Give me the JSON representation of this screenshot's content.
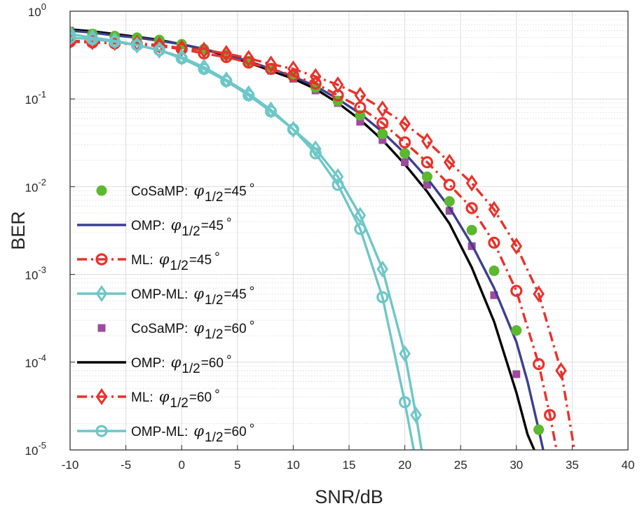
{
  "chart_data": {
    "type": "line",
    "title": "",
    "xlabel": "SNR/dB",
    "ylabel": "BER",
    "xlim": [
      -10,
      40
    ],
    "ylim": [
      1e-05,
      1
    ],
    "yscale": "log",
    "grid": true,
    "minor_grid": true,
    "legend_placement": "left",
    "x_ticks": [
      "-10",
      "-5",
      "0",
      "5",
      "10",
      "15",
      "20",
      "25",
      "30",
      "35",
      "40"
    ],
    "y_ticks": [
      {
        "base": "10",
        "exp": "0"
      },
      {
        "base": "10",
        "exp": "-1"
      },
      {
        "base": "10",
        "exp": "-2"
      },
      {
        "base": "10",
        "exp": "-3"
      },
      {
        "base": "10",
        "exp": "-4"
      },
      {
        "base": "10",
        "exp": "-5"
      }
    ],
    "series": [
      {
        "legend": {
          "prefix": "CoSaMP:",
          "sub": "1/2",
          "suffix": "=45",
          "deg": "°"
        },
        "color": "#5cb82e",
        "line": "none",
        "marker": "circle-filled",
        "x": [
          -10,
          -8,
          -6,
          -4,
          -2,
          0,
          2,
          4,
          6,
          8,
          10,
          12,
          14,
          16,
          18,
          20,
          22,
          24,
          26,
          28,
          30,
          32
        ],
        "y": [
          0.57,
          0.55,
          0.52,
          0.5,
          0.47,
          0.42,
          0.37,
          0.32,
          0.27,
          0.22,
          0.18,
          0.135,
          0.095,
          0.065,
          0.04,
          0.024,
          0.013,
          0.0068,
          0.0032,
          0.0011,
          0.00023,
          1.7e-05
        ]
      },
      {
        "legend": {
          "prefix": "OMP:",
          "sub": "1/2",
          "suffix": "=45",
          "deg": "°"
        },
        "color": "#3c3f90",
        "line": "solid",
        "marker": "none",
        "x": [
          -10,
          -8,
          -6,
          -4,
          -2,
          0,
          2,
          4,
          6,
          8,
          10,
          12,
          14,
          16,
          18,
          20,
          22,
          24,
          26,
          28,
          30,
          31,
          32,
          32.4
        ],
        "y": [
          0.6,
          0.57,
          0.53,
          0.5,
          0.46,
          0.42,
          0.37,
          0.32,
          0.27,
          0.22,
          0.18,
          0.14,
          0.1,
          0.068,
          0.042,
          0.024,
          0.0125,
          0.0058,
          0.0022,
          0.0007,
          0.00017,
          6e-05,
          1.7e-05,
          1e-05
        ]
      },
      {
        "legend": {
          "prefix": "ML:",
          "sub": "1/2",
          "suffix": "=45",
          "deg": "°"
        },
        "color": "#e8322b",
        "line": "dashdot",
        "marker": "circle-open",
        "x": [
          -10,
          -8,
          -6,
          -4,
          -2,
          0,
          2,
          4,
          6,
          8,
          10,
          12,
          14,
          16,
          18,
          20,
          22,
          24,
          26,
          28,
          30,
          32,
          33,
          33.6
        ],
        "y": [
          0.45,
          0.44,
          0.43,
          0.42,
          0.4,
          0.37,
          0.33,
          0.3,
          0.26,
          0.22,
          0.185,
          0.15,
          0.11,
          0.08,
          0.053,
          0.032,
          0.019,
          0.0105,
          0.0057,
          0.0023,
          0.00065,
          9.5e-05,
          2.5e-05,
          1e-05
        ]
      },
      {
        "legend": {
          "prefix": "OMP-ML:",
          "sub": "1/2",
          "suffix": "=45",
          "deg": "°"
        },
        "color": "#6ec6c7",
        "line": "solid",
        "marker": "diamond-open",
        "x": [
          -10,
          -8,
          -6,
          -4,
          -2,
          0,
          2,
          4,
          6,
          8,
          10,
          12,
          14,
          16,
          18,
          20,
          21,
          21.5
        ],
        "y": [
          0.55,
          0.5,
          0.46,
          0.41,
          0.36,
          0.3,
          0.23,
          0.165,
          0.115,
          0.075,
          0.045,
          0.027,
          0.013,
          0.0047,
          0.00115,
          0.000125,
          2.5e-05,
          1e-05
        ]
      },
      {
        "legend": {
          "prefix": "CoSaMP:",
          "sub": "1/2",
          "suffix": "=60",
          "deg": "°"
        },
        "color": "#9e4a9e",
        "line": "none",
        "marker": "square-filled",
        "x": [
          -10,
          -8,
          -6,
          -4,
          -2,
          0,
          2,
          4,
          6,
          8,
          10,
          12,
          14,
          16,
          18,
          20,
          22,
          24,
          26,
          28,
          30
        ],
        "y": [
          0.6,
          0.56,
          0.52,
          0.49,
          0.45,
          0.41,
          0.36,
          0.31,
          0.26,
          0.21,
          0.17,
          0.125,
          0.09,
          0.055,
          0.034,
          0.019,
          0.0105,
          0.0053,
          0.0021,
          0.00058,
          7.3e-05
        ]
      },
      {
        "legend": {
          "prefix": "OMP:",
          "sub": "1/2",
          "suffix": "=60",
          "deg": "°"
        },
        "color": "#000000",
        "line": "solid",
        "marker": "none",
        "x": [
          -10,
          -8,
          -6,
          -4,
          -2,
          0,
          2,
          4,
          6,
          8,
          10,
          12,
          14,
          16,
          18,
          20,
          22,
          24,
          26,
          28,
          30,
          31,
          31.6
        ],
        "y": [
          0.62,
          0.59,
          0.55,
          0.51,
          0.47,
          0.42,
          0.37,
          0.31,
          0.26,
          0.21,
          0.17,
          0.13,
          0.09,
          0.058,
          0.034,
          0.018,
          0.0088,
          0.0038,
          0.0012,
          0.00029,
          4.5e-05,
          1.5e-05,
          1e-05
        ]
      },
      {
        "legend": {
          "prefix": "ML:",
          "sub": "1/2",
          "suffix": "=60",
          "deg": "°"
        },
        "color": "#e8322b",
        "line": "dashdot",
        "marker": "diamond-open",
        "x": [
          -10,
          -8,
          -6,
          -4,
          -2,
          0,
          2,
          4,
          6,
          8,
          10,
          12,
          14,
          16,
          18,
          20,
          22,
          24,
          26,
          28,
          30,
          32,
          34,
          35.2
        ],
        "y": [
          0.46,
          0.45,
          0.44,
          0.43,
          0.41,
          0.38,
          0.36,
          0.33,
          0.29,
          0.25,
          0.22,
          0.18,
          0.145,
          0.11,
          0.077,
          0.052,
          0.033,
          0.019,
          0.011,
          0.0055,
          0.0021,
          0.0006,
          8e-05,
          1e-05
        ]
      },
      {
        "legend": {
          "prefix": "OMP-ML:",
          "sub": "1/2",
          "suffix": "=60",
          "deg": "°"
        },
        "color": "#6ec6c7",
        "line": "solid",
        "marker": "circle-open",
        "x": [
          -10,
          -8,
          -6,
          -4,
          -2,
          0,
          2,
          4,
          6,
          8,
          10,
          12,
          14,
          16,
          18,
          20,
          20.8
        ],
        "y": [
          0.5,
          0.48,
          0.45,
          0.41,
          0.36,
          0.29,
          0.22,
          0.16,
          0.11,
          0.072,
          0.045,
          0.024,
          0.0105,
          0.0033,
          0.00055,
          3.5e-05,
          1e-05
        ]
      }
    ]
  }
}
